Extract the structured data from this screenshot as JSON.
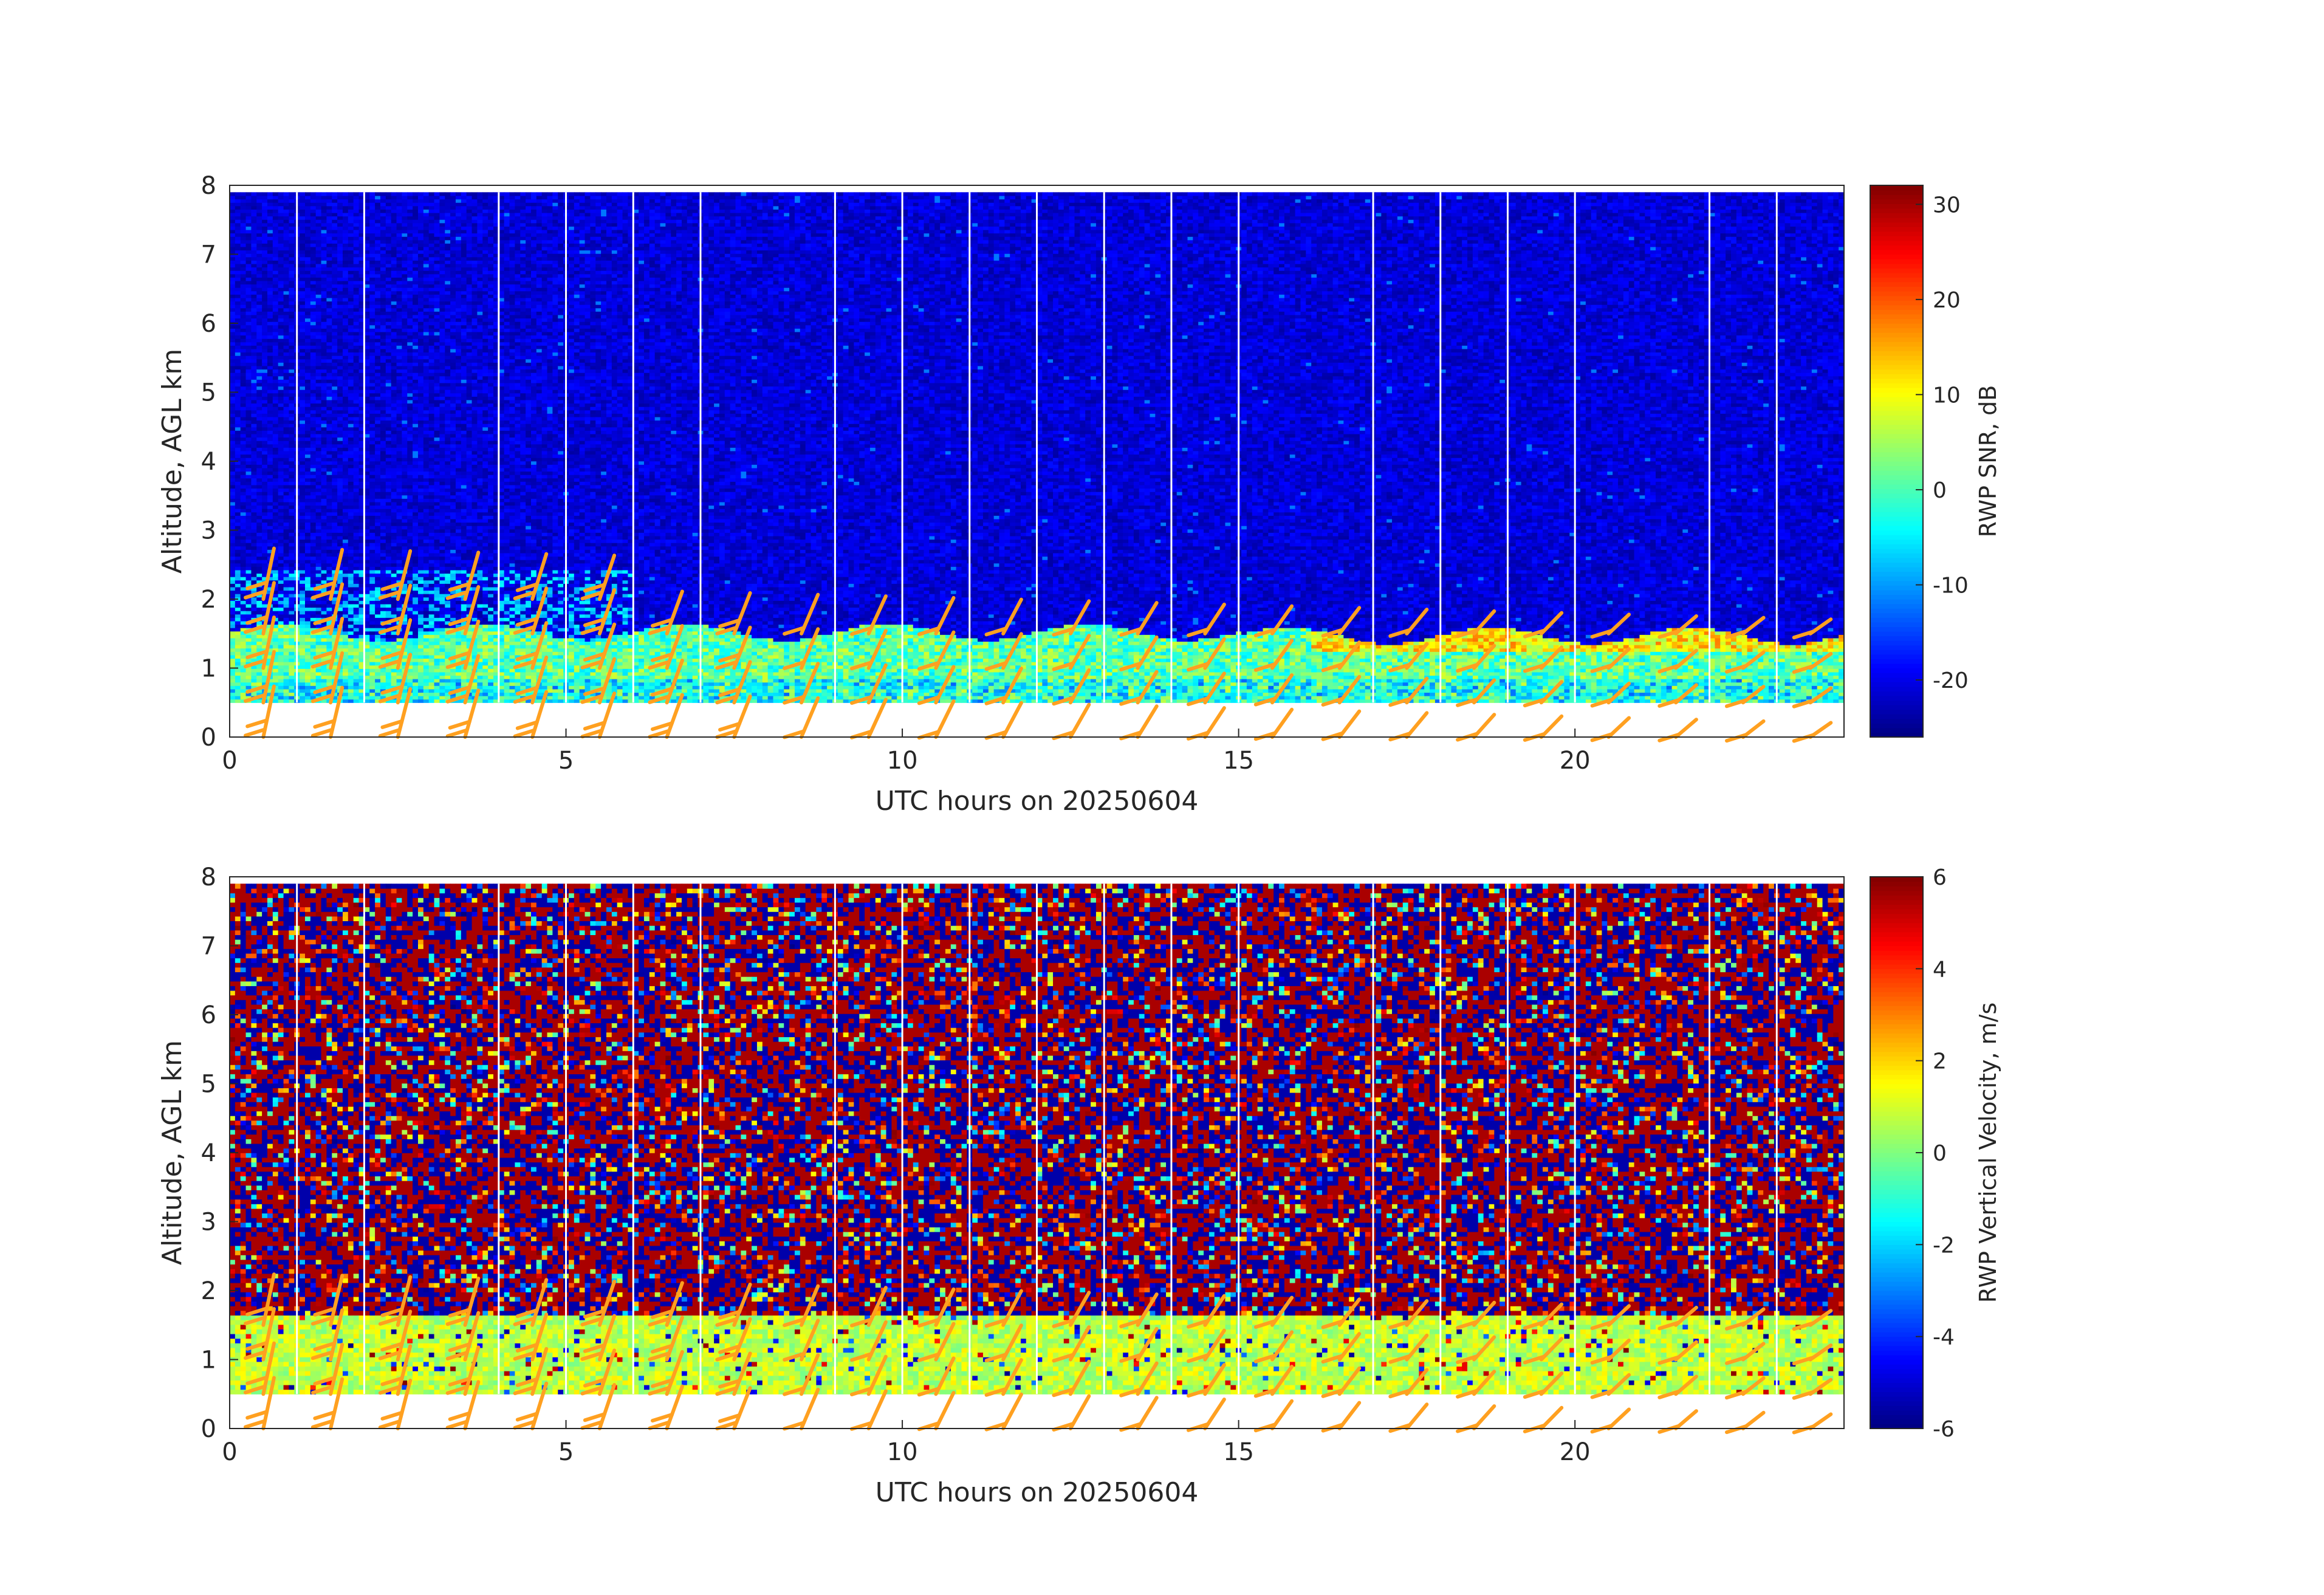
{
  "chart_data": [
    {
      "type": "heatmap",
      "title": "",
      "xlabel": "UTC hours on 20250604",
      "ylabel": "Altitude, AGL km",
      "xlim": [
        0,
        24
      ],
      "ylim": [
        0,
        8
      ],
      "xticks": [
        0,
        5,
        10,
        15,
        20
      ],
      "yticks": [
        0,
        1,
        2,
        3,
        4,
        5,
        6,
        7,
        8
      ],
      "colorbar": {
        "label": "RWP SNR, dB",
        "range": [
          -26,
          32
        ],
        "ticks": [
          -20,
          -10,
          0,
          10,
          20,
          30
        ],
        "colormap": "jet"
      },
      "data_valid_range_km": [
        0.5,
        7.9
      ],
      "boundary_layer_top_km": 1.5,
      "upper_layer_top_km": 2.4,
      "gap_hours": [
        1,
        2,
        4,
        5,
        6,
        7,
        9,
        10,
        11,
        12,
        13,
        14,
        15,
        17,
        18,
        19,
        20,
        22,
        23
      ],
      "wind_barbs": {
        "color": "#ffa020",
        "times_hours": [
          0.5,
          1.5,
          2.5,
          3.5,
          4.5,
          5.5,
          6.5,
          7.5,
          8.5,
          9.5,
          10.5,
          11.5,
          12.5,
          13.5,
          14.5,
          15.5,
          16.5,
          17.5,
          18.5,
          19.5,
          20.5,
          21.5,
          22.5,
          23.5
        ]
      }
    },
    {
      "type": "heatmap",
      "title": "",
      "xlabel": "UTC hours on 20250604",
      "ylabel": "Altitude, AGL km",
      "xlim": [
        0,
        24
      ],
      "ylim": [
        0,
        8
      ],
      "xticks": [
        0,
        5,
        10,
        15,
        20
      ],
      "yticks": [
        0,
        1,
        2,
        3,
        4,
        5,
        6,
        7,
        8
      ],
      "colorbar": {
        "label": "RWP Vertical Velocity, m/s",
        "range": [
          -6,
          6
        ],
        "ticks": [
          -6,
          -4,
          -2,
          0,
          2,
          4,
          6
        ],
        "colormap": "jet"
      },
      "data_valid_range_km": [
        0.5,
        7.9
      ],
      "boundary_layer_top_km": 1.6,
      "gap_hours": [
        1,
        2,
        4,
        5,
        6,
        7,
        9,
        10,
        11,
        12,
        13,
        14,
        15,
        17,
        18,
        19,
        20,
        22,
        23
      ],
      "wind_barbs": {
        "color": "#ffa020",
        "times_hours": [
          0.5,
          1.5,
          2.5,
          3.5,
          4.5,
          5.5,
          6.5,
          7.5,
          8.5,
          9.5,
          10.5,
          11.5,
          12.5,
          13.5,
          14.5,
          15.5,
          16.5,
          17.5,
          18.5,
          19.5,
          20.5,
          21.5,
          22.5,
          23.5
        ]
      }
    }
  ]
}
